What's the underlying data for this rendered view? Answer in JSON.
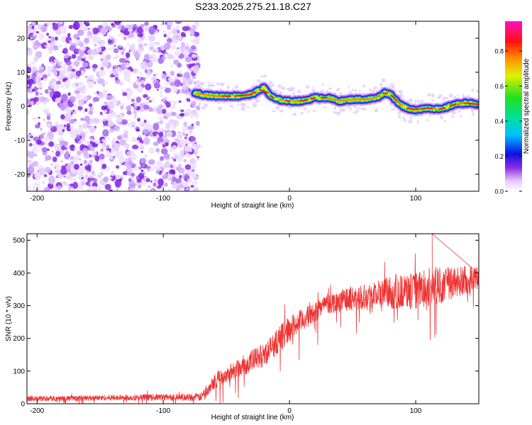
{
  "figure": {
    "title": "S233.2025.275.21.18.C27"
  },
  "chart_data": [
    {
      "type": "heatmap",
      "title": "",
      "xlabel": "Height of straight line (km)",
      "ylabel": "Frequency (Hz)",
      "xlim": [
        -208,
        150
      ],
      "ylim": [
        -25,
        25
      ],
      "xticks": [
        -200,
        -100,
        0,
        100
      ],
      "xtick_labels": [
        "-200",
        "-100",
        "0",
        "100"
      ],
      "yticks": [
        -20,
        -10,
        0,
        10,
        20
      ],
      "ytick_labels": [
        "-20",
        "-10",
        "0",
        "10",
        "20"
      ],
      "noise_region_x": [
        -208,
        -72
      ],
      "signal_track": {
        "x": [
          -75,
          -70,
          -60,
          -50,
          -40,
          -30,
          -25,
          -20,
          -15,
          -10,
          0,
          10,
          20,
          30,
          40,
          50,
          60,
          70,
          75,
          80,
          85,
          90,
          95,
          100,
          110,
          120,
          130,
          140,
          150
        ],
        "freq_hz": [
          4,
          3.5,
          3,
          3,
          3,
          3.5,
          4.5,
          5.5,
          3,
          2,
          1.5,
          1.5,
          2.5,
          2.5,
          1.5,
          2,
          2,
          2.5,
          4,
          3.5,
          1.5,
          0,
          -1,
          -1,
          -0.5,
          -1,
          0.5,
          1,
          0.5
        ]
      },
      "colorbar": {
        "label": "Normalized spectral amplitude",
        "ticks": [
          0.0,
          0.2,
          0.4,
          0.6,
          0.8
        ],
        "tick_labels": [
          "0.0",
          "0.2",
          "0.4",
          "0.6",
          "0.8"
        ],
        "range": [
          0,
          0.97
        ]
      }
    },
    {
      "type": "line",
      "title": "",
      "xlabel": "Height of straight line (km)",
      "ylabel": "SNR (10 * v/v)",
      "xlim": [
        -208,
        150
      ],
      "ylim": [
        0,
        520
      ],
      "xticks": [
        -200,
        -100,
        0,
        100
      ],
      "xtick_labels": [
        "-200",
        "-100",
        "0",
        "100"
      ],
      "yticks": [
        0,
        100,
        200,
        300,
        400,
        500
      ],
      "ytick_labels": [
        "0",
        "100",
        "200",
        "300",
        "400",
        "500"
      ],
      "series": [
        {
          "name": "SNR",
          "color": "#ee3333",
          "x": [
            -208,
            -150,
            -100,
            -70,
            -65,
            -60,
            -50,
            -40,
            -30,
            -20,
            -10,
            0,
            10,
            20,
            25,
            30,
            40,
            60,
            80,
            100,
            115,
            130,
            150
          ],
          "values": [
            15,
            18,
            20,
            20,
            45,
            70,
            90,
            110,
            130,
            150,
            190,
            230,
            255,
            280,
            300,
            305,
            315,
            330,
            340,
            345,
            360,
            370,
            380
          ],
          "noise_amplitude": [
            8,
            8,
            10,
            12,
            20,
            25,
            25,
            30,
            35,
            35,
            40,
            40,
            35,
            30,
            30,
            30,
            35,
            40,
            50,
            55,
            60,
            50,
            45
          ],
          "peak": {
            "x": 113,
            "y": 520
          }
        }
      ]
    }
  ]
}
